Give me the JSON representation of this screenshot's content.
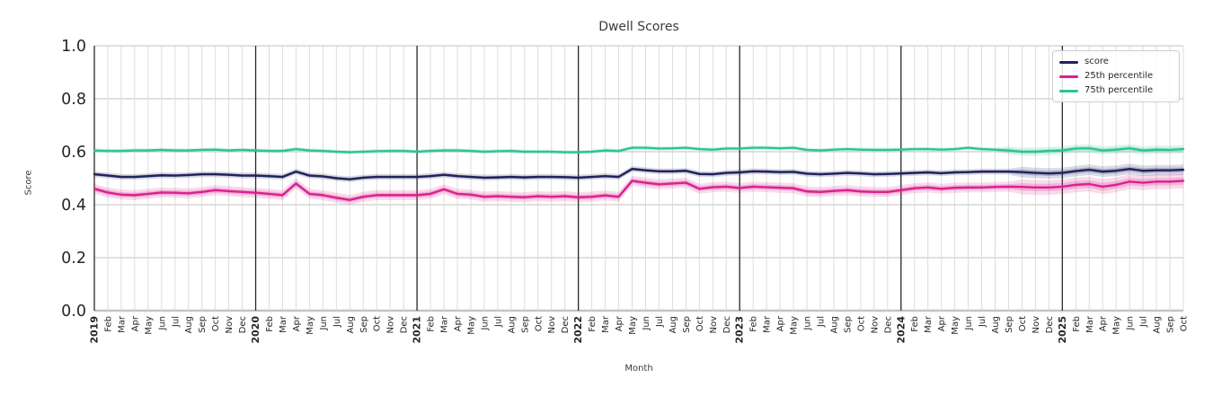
{
  "chart": {
    "title": "Dwell Scores",
    "xlabel": "Month",
    "ylabel": "Score"
  },
  "legend": {
    "items": [
      {
        "label": "score",
        "color": "#21215e"
      },
      {
        "label": "25th percentile",
        "color": "#d9218e"
      },
      {
        "label": "75th percentile",
        "color": "#2ec492"
      }
    ]
  },
  "chart_data": {
    "type": "line",
    "title": "Dwell Scores",
    "xlabel": "Month",
    "ylabel": "Score",
    "ylim": [
      0.0,
      1.0
    ],
    "grid": true,
    "legend_position": "upper right",
    "y_ticks": [
      0.0,
      0.2,
      0.4,
      0.6,
      0.8,
      1.0
    ],
    "y_ticklabels": [
      "0.0",
      "0.2",
      "0.4",
      "0.6",
      "0.8",
      "1.0"
    ],
    "x_ticklabels": [
      "2019",
      "Feb",
      "Mar",
      "Apr",
      "May",
      "Jun",
      "Jul",
      "Aug",
      "Sep",
      "Oct",
      "Nov",
      "Dec",
      "2020",
      "Feb",
      "Mar",
      "Apr",
      "May",
      "Jun",
      "Jul",
      "Aug",
      "Sep",
      "Oct",
      "Nov",
      "Dec",
      "2021",
      "Feb",
      "Mar",
      "Apr",
      "May",
      "Jun",
      "Jul",
      "Aug",
      "Sep",
      "Oct",
      "Nov",
      "Dec",
      "2022",
      "Feb",
      "Mar",
      "Apr",
      "May",
      "Jun",
      "Jul",
      "Aug",
      "Sep",
      "Oct",
      "Nov",
      "Dec",
      "2023",
      "Feb",
      "Mar",
      "Apr",
      "May",
      "Jun",
      "Jul",
      "Aug",
      "Sep",
      "Oct",
      "Nov",
      "Dec",
      "2024",
      "Feb",
      "Mar",
      "Apr",
      "May",
      "Jun",
      "Jul",
      "Aug",
      "Sep",
      "Oct",
      "Nov",
      "Dec",
      "2025",
      "Feb",
      "Mar",
      "Apr",
      "May",
      "Jun",
      "Jul",
      "Aug",
      "Sep",
      "Oct"
    ],
    "year_line_indices": [
      0,
      12,
      24,
      36,
      48,
      60,
      72
    ],
    "series": [
      {
        "name": "score",
        "color": "#21215e",
        "band_half_width": 0.011,
        "band_half_width_wide": 0.02,
        "wide_from_index": 69,
        "values": [
          0.515,
          0.51,
          0.505,
          0.505,
          0.508,
          0.511,
          0.51,
          0.512,
          0.515,
          0.515,
          0.513,
          0.51,
          0.51,
          0.508,
          0.505,
          0.525,
          0.51,
          0.507,
          0.5,
          0.496,
          0.502,
          0.505,
          0.505,
          0.505,
          0.505,
          0.508,
          0.513,
          0.508,
          0.505,
          0.502,
          0.503,
          0.505,
          0.503,
          0.505,
          0.505,
          0.504,
          0.502,
          0.505,
          0.508,
          0.505,
          0.535,
          0.53,
          0.526,
          0.526,
          0.528,
          0.516,
          0.515,
          0.52,
          0.522,
          0.526,
          0.525,
          0.523,
          0.524,
          0.517,
          0.515,
          0.517,
          0.52,
          0.518,
          0.515,
          0.516,
          0.518,
          0.52,
          0.522,
          0.519,
          0.522,
          0.523,
          0.525,
          0.525,
          0.525,
          0.523,
          0.52,
          0.518,
          0.52,
          0.527,
          0.532,
          0.525,
          0.528,
          0.535,
          0.528,
          0.53,
          0.53,
          0.532
        ]
      },
      {
        "name": "25th percentile",
        "color": "#d9218e",
        "band_half_width": 0.019,
        "band_half_width_wide": 0.028,
        "wide_from_index": 69,
        "values": [
          0.46,
          0.446,
          0.438,
          0.436,
          0.441,
          0.446,
          0.445,
          0.443,
          0.448,
          0.455,
          0.451,
          0.448,
          0.445,
          0.441,
          0.436,
          0.48,
          0.441,
          0.436,
          0.426,
          0.418,
          0.43,
          0.436,
          0.436,
          0.436,
          0.436,
          0.441,
          0.458,
          0.441,
          0.438,
          0.43,
          0.432,
          0.43,
          0.428,
          0.432,
          0.43,
          0.432,
          0.428,
          0.43,
          0.435,
          0.43,
          0.49,
          0.483,
          0.477,
          0.48,
          0.483,
          0.46,
          0.466,
          0.468,
          0.463,
          0.468,
          0.466,
          0.464,
          0.462,
          0.45,
          0.448,
          0.452,
          0.455,
          0.45,
          0.448,
          0.448,
          0.455,
          0.462,
          0.465,
          0.46,
          0.464,
          0.465,
          0.465,
          0.467,
          0.468,
          0.467,
          0.465,
          0.465,
          0.468,
          0.475,
          0.478,
          0.468,
          0.475,
          0.487,
          0.483,
          0.487,
          0.487,
          0.49
        ]
      },
      {
        "name": "75th percentile",
        "color": "#2ec492",
        "band_half_width": 0.008,
        "band_half_width_wide": 0.016,
        "wide_from_index": 68,
        "values": [
          0.605,
          0.603,
          0.603,
          0.605,
          0.605,
          0.607,
          0.605,
          0.605,
          0.607,
          0.608,
          0.605,
          0.607,
          0.605,
          0.603,
          0.603,
          0.61,
          0.605,
          0.603,
          0.6,
          0.598,
          0.6,
          0.602,
          0.603,
          0.603,
          0.6,
          0.603,
          0.605,
          0.605,
          0.603,
          0.6,
          0.602,
          0.603,
          0.6,
          0.6,
          0.6,
          0.598,
          0.598,
          0.6,
          0.605,
          0.603,
          0.615,
          0.615,
          0.612,
          0.613,
          0.615,
          0.61,
          0.608,
          0.612,
          0.612,
          0.615,
          0.615,
          0.613,
          0.615,
          0.607,
          0.605,
          0.608,
          0.61,
          0.608,
          0.607,
          0.607,
          0.608,
          0.61,
          0.61,
          0.608,
          0.61,
          0.615,
          0.61,
          0.608,
          0.605,
          0.6,
          0.6,
          0.603,
          0.605,
          0.612,
          0.613,
          0.605,
          0.608,
          0.613,
          0.605,
          0.608,
          0.607,
          0.61
        ]
      }
    ]
  }
}
